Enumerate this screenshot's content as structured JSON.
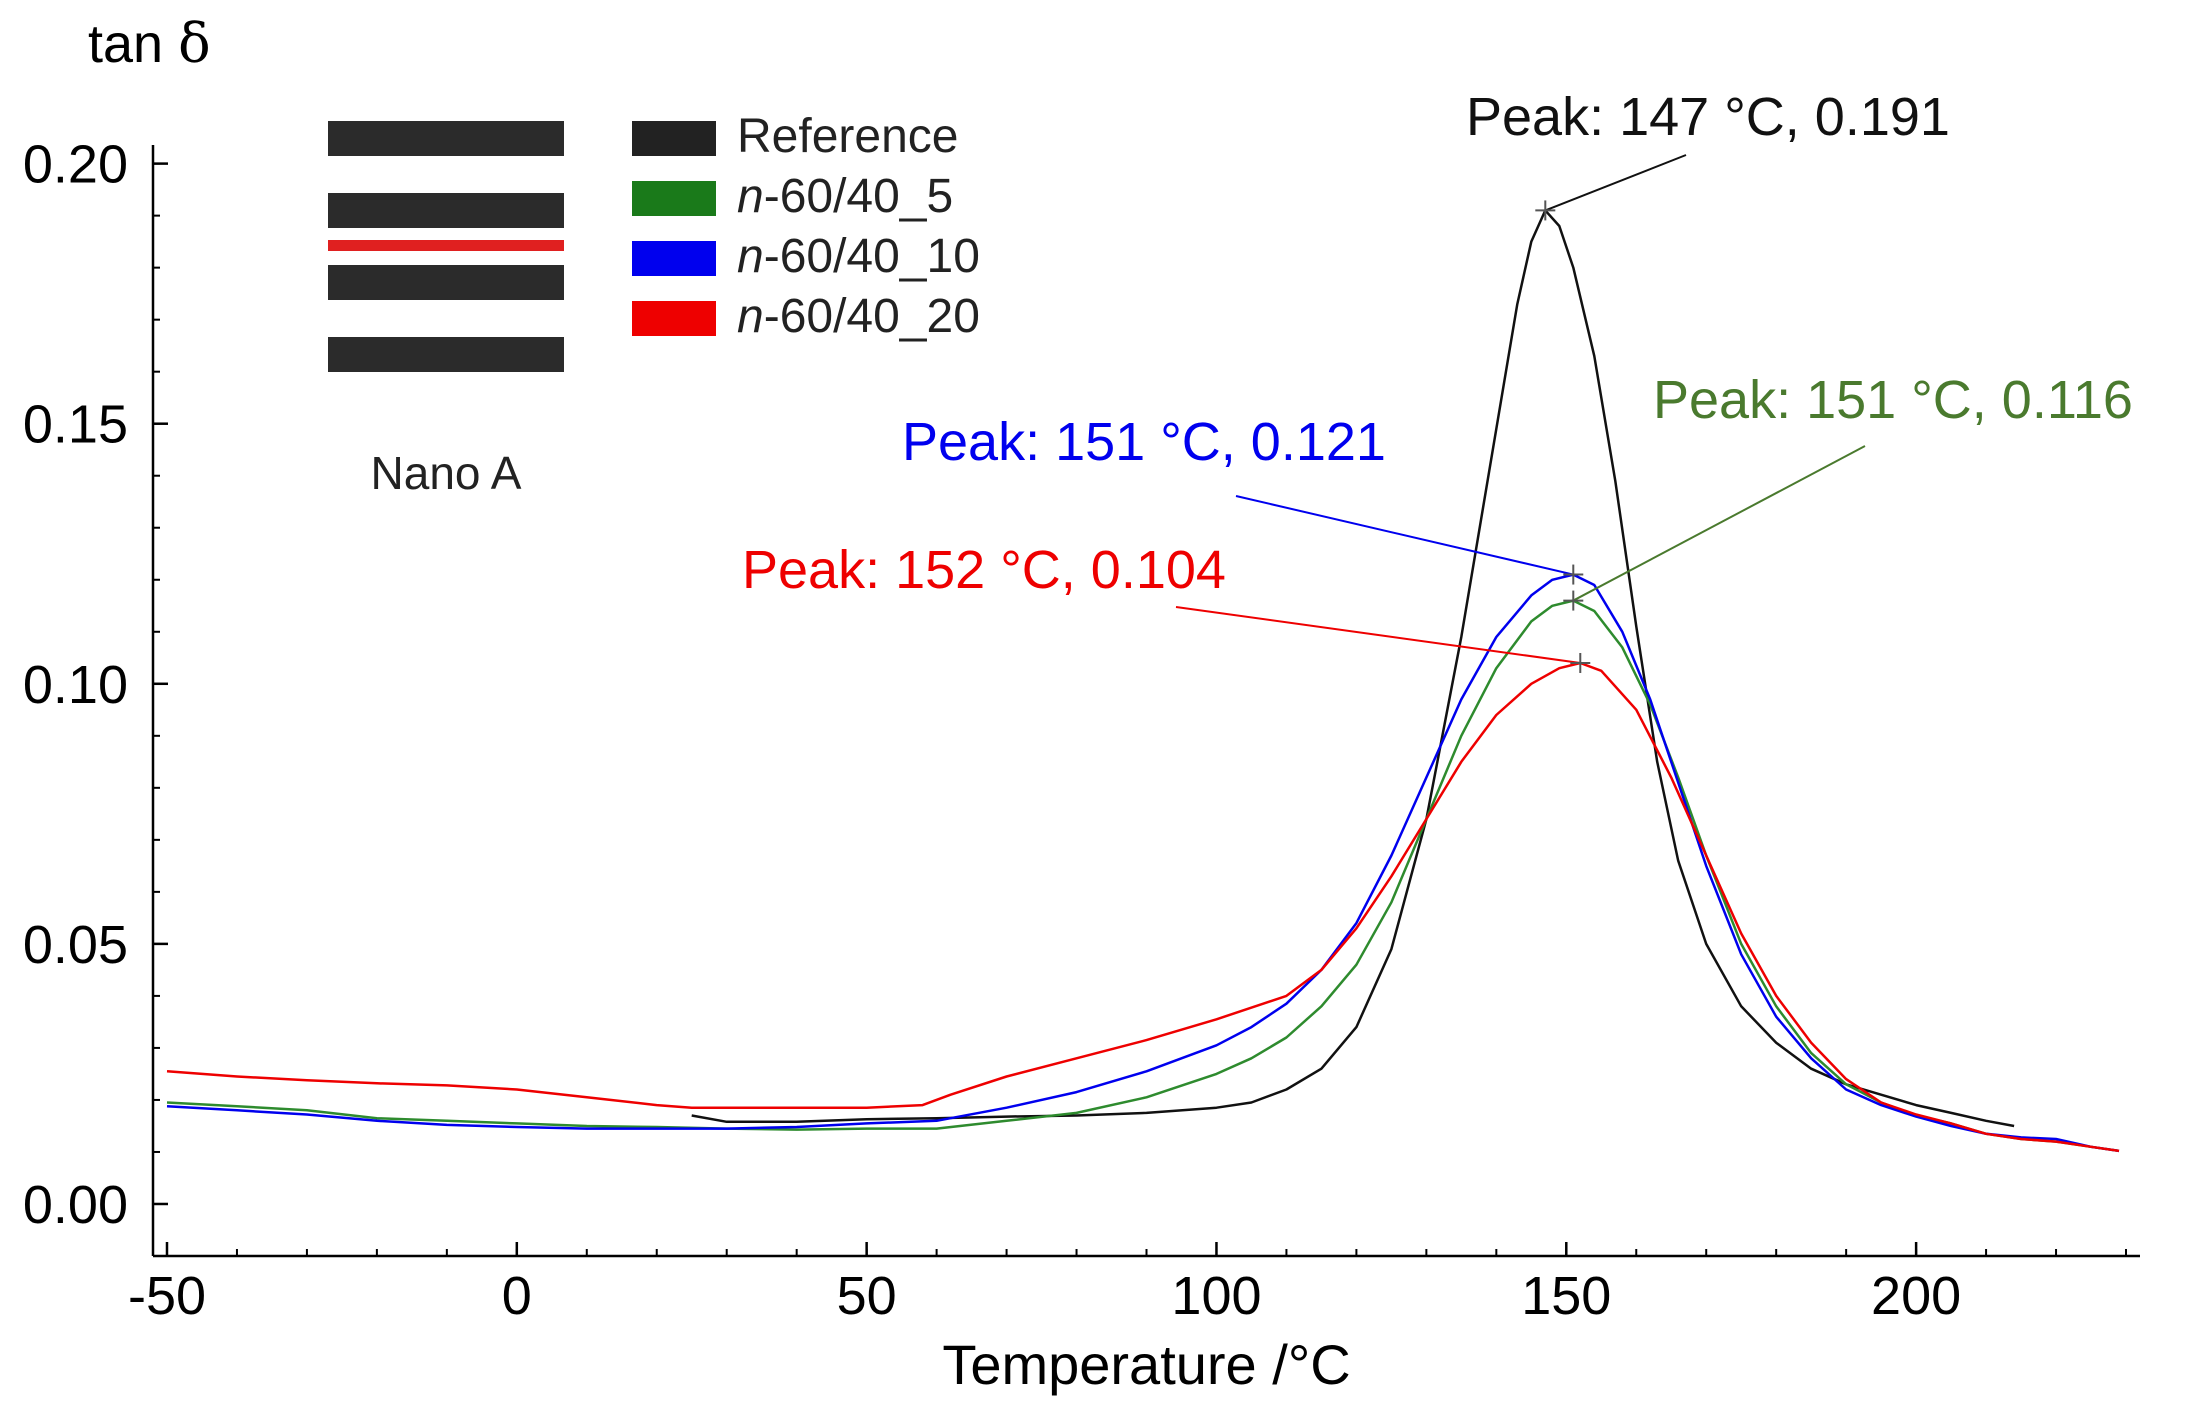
{
  "chart_data": {
    "type": "line",
    "ylabel_prefix": "tan ",
    "ylabel_symbol": "δ",
    "xlabel": "Temperature /°C",
    "xlim": [
      -52,
      232
    ],
    "ylim": [
      -0.01,
      0.203
    ],
    "xticks": [
      -50,
      0,
      50,
      100,
      150,
      200
    ],
    "xtick_labels": [
      "-50",
      "0",
      "50",
      "100",
      "150",
      "200"
    ],
    "yticks": [
      0.0,
      0.05,
      0.1,
      0.15,
      0.2
    ],
    "ytick_labels": [
      "0.00",
      "0.05",
      "0.10",
      "0.15",
      "0.20"
    ],
    "inset_label": "Nano A",
    "legend": {
      "placement": "top-left",
      "entries": [
        {
          "italic": "",
          "text": "Reference",
          "color": "#222222"
        },
        {
          "italic": "n",
          "text": "-60/40_5",
          "color": "#1a7a1a"
        },
        {
          "italic": "n",
          "text": "-60/40_10",
          "color": "#0000ee"
        },
        {
          "italic": "n",
          "text": "-60/40_20",
          "color": "#ee0000"
        }
      ]
    },
    "series": [
      {
        "name": "Reference",
        "color": "#111111",
        "points": [
          [
            25,
            0.017
          ],
          [
            30,
            0.0158
          ],
          [
            40,
            0.0158
          ],
          [
            50,
            0.0163
          ],
          [
            60,
            0.0165
          ],
          [
            70,
            0.0168
          ],
          [
            80,
            0.017
          ],
          [
            90,
            0.0175
          ],
          [
            100,
            0.0185
          ],
          [
            105,
            0.0195
          ],
          [
            110,
            0.022
          ],
          [
            115,
            0.026
          ],
          [
            120,
            0.034
          ],
          [
            125,
            0.049
          ],
          [
            130,
            0.074
          ],
          [
            135,
            0.109
          ],
          [
            140,
            0.149
          ],
          [
            143,
            0.173
          ],
          [
            145,
            0.185
          ],
          [
            147,
            0.191
          ],
          [
            149,
            0.188
          ],
          [
            151,
            0.18
          ],
          [
            154,
            0.163
          ],
          [
            157,
            0.139
          ],
          [
            160,
            0.111
          ],
          [
            163,
            0.085
          ],
          [
            166,
            0.066
          ],
          [
            170,
            0.05
          ],
          [
            175,
            0.038
          ],
          [
            180,
            0.031
          ],
          [
            185,
            0.026
          ],
          [
            190,
            0.023
          ],
          [
            195,
            0.021
          ],
          [
            200,
            0.019
          ],
          [
            205,
            0.0175
          ],
          [
            210,
            0.016
          ],
          [
            214,
            0.015
          ]
        ]
      },
      {
        "name": "n-60/40_5",
        "color": "#2e8b2e",
        "points": [
          [
            -50,
            0.0195
          ],
          [
            -40,
            0.0188
          ],
          [
            -30,
            0.018
          ],
          [
            -20,
            0.0165
          ],
          [
            -10,
            0.016
          ],
          [
            0,
            0.0155
          ],
          [
            10,
            0.015
          ],
          [
            20,
            0.0148
          ],
          [
            30,
            0.0145
          ],
          [
            40,
            0.0143
          ],
          [
            50,
            0.0145
          ],
          [
            60,
            0.0145
          ],
          [
            70,
            0.016
          ],
          [
            80,
            0.0175
          ],
          [
            90,
            0.0205
          ],
          [
            100,
            0.025
          ],
          [
            105,
            0.028
          ],
          [
            110,
            0.032
          ],
          [
            115,
            0.038
          ],
          [
            120,
            0.046
          ],
          [
            125,
            0.058
          ],
          [
            130,
            0.074
          ],
          [
            135,
            0.09
          ],
          [
            140,
            0.103
          ],
          [
            145,
            0.112
          ],
          [
            148,
            0.115
          ],
          [
            151,
            0.116
          ],
          [
            154,
            0.114
          ],
          [
            158,
            0.107
          ],
          [
            162,
            0.096
          ],
          [
            166,
            0.082
          ],
          [
            170,
            0.067
          ],
          [
            175,
            0.05
          ],
          [
            180,
            0.038
          ],
          [
            185,
            0.029
          ],
          [
            190,
            0.023
          ],
          [
            195,
            0.0195
          ],
          [
            200,
            0.017
          ],
          [
            205,
            0.0155
          ],
          [
            210,
            0.0135
          ],
          [
            215,
            0.0125
          ],
          [
            220,
            0.012
          ],
          [
            225,
            0.011
          ],
          [
            229,
            0.0102
          ]
        ]
      },
      {
        "name": "n-60/40_10",
        "color": "#0000ee",
        "points": [
          [
            -50,
            0.0188
          ],
          [
            -40,
            0.018
          ],
          [
            -30,
            0.0172
          ],
          [
            -20,
            0.016
          ],
          [
            -10,
            0.0152
          ],
          [
            0,
            0.0148
          ],
          [
            10,
            0.0145
          ],
          [
            20,
            0.0145
          ],
          [
            30,
            0.0145
          ],
          [
            40,
            0.0148
          ],
          [
            50,
            0.0155
          ],
          [
            60,
            0.016
          ],
          [
            70,
            0.0185
          ],
          [
            80,
            0.0215
          ],
          [
            90,
            0.0255
          ],
          [
            100,
            0.0305
          ],
          [
            105,
            0.034
          ],
          [
            110,
            0.0385
          ],
          [
            115,
            0.045
          ],
          [
            120,
            0.054
          ],
          [
            125,
            0.067
          ],
          [
            130,
            0.082
          ],
          [
            135,
            0.097
          ],
          [
            140,
            0.109
          ],
          [
            145,
            0.117
          ],
          [
            148,
            0.12
          ],
          [
            151,
            0.121
          ],
          [
            154,
            0.119
          ],
          [
            158,
            0.11
          ],
          [
            162,
            0.097
          ],
          [
            166,
            0.081
          ],
          [
            170,
            0.065
          ],
          [
            175,
            0.048
          ],
          [
            180,
            0.036
          ],
          [
            185,
            0.028
          ],
          [
            190,
            0.022
          ],
          [
            195,
            0.019
          ],
          [
            200,
            0.0168
          ],
          [
            205,
            0.015
          ],
          [
            210,
            0.0135
          ],
          [
            215,
            0.0128
          ],
          [
            220,
            0.0125
          ],
          [
            225,
            0.011
          ],
          [
            229,
            0.0102
          ]
        ]
      },
      {
        "name": "n-60/40_20",
        "color": "#ee0000",
        "points": [
          [
            -50,
            0.0255
          ],
          [
            -40,
            0.0245
          ],
          [
            -30,
            0.0238
          ],
          [
            -20,
            0.0232
          ],
          [
            -10,
            0.0228
          ],
          [
            0,
            0.022
          ],
          [
            10,
            0.0205
          ],
          [
            20,
            0.019
          ],
          [
            25,
            0.0185
          ],
          [
            30,
            0.0185
          ],
          [
            40,
            0.0185
          ],
          [
            50,
            0.0185
          ],
          [
            58,
            0.019
          ],
          [
            62,
            0.021
          ],
          [
            70,
            0.0245
          ],
          [
            80,
            0.028
          ],
          [
            90,
            0.0315
          ],
          [
            100,
            0.0355
          ],
          [
            110,
            0.04
          ],
          [
            115,
            0.045
          ],
          [
            120,
            0.053
          ],
          [
            125,
            0.063
          ],
          [
            130,
            0.074
          ],
          [
            135,
            0.085
          ],
          [
            140,
            0.094
          ],
          [
            145,
            0.1
          ],
          [
            149,
            0.103
          ],
          [
            152,
            0.104
          ],
          [
            155,
            0.1025
          ],
          [
            160,
            0.095
          ],
          [
            165,
            0.082
          ],
          [
            170,
            0.067
          ],
          [
            175,
            0.052
          ],
          [
            180,
            0.04
          ],
          [
            185,
            0.031
          ],
          [
            190,
            0.024
          ],
          [
            195,
            0.0195
          ],
          [
            200,
            0.0172
          ],
          [
            205,
            0.0155
          ],
          [
            210,
            0.0135
          ],
          [
            215,
            0.0125
          ],
          [
            220,
            0.012
          ],
          [
            225,
            0.011
          ],
          [
            229,
            0.0102
          ]
        ]
      }
    ],
    "annotations": [
      {
        "text": "Peak: 147 °C, 0.191",
        "color": "#111111",
        "x": 147,
        "y": 0.191
      },
      {
        "text": "Peak: 151 °C, 0.121",
        "color": "#0000ee",
        "x": 151,
        "y": 0.121
      },
      {
        "text": "Peak: 151 °C, 0.116",
        "color": "#4a7a2e",
        "x": 151,
        "y": 0.116
      },
      {
        "text": "Peak: 152 °C, 0.104",
        "color": "#ee0000",
        "x": 152,
        "y": 0.104
      }
    ]
  }
}
